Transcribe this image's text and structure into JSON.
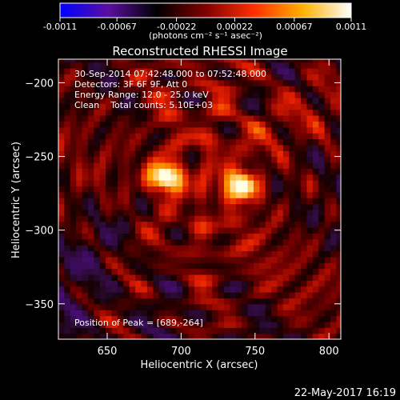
{
  "colorbar": {
    "ticks": [
      "-0.0011",
      "-0.00067",
      "-0.00022",
      "0.00022",
      "0.00067",
      "0.0011"
    ],
    "tick_values": [
      -0.0011,
      -0.00067,
      -0.00022,
      0.00022,
      0.00067,
      0.0011
    ],
    "range": [
      -0.0011,
      0.0011
    ],
    "unit_label": "(photons cm⁻² s⁻¹ asec⁻²)",
    "colors": [
      "#0000ff",
      "#5a0fa0",
      "#000000",
      "#800000",
      "#ff3000",
      "#ffb000",
      "#ffffff"
    ]
  },
  "chart_data": {
    "type": "heatmap",
    "title": "Reconstructed RHESSI Image",
    "xlabel": "Heliocentric X (arcsec)",
    "ylabel": "Heliocentric Y (arcsec)",
    "xlim": [
      617,
      808
    ],
    "ylim": [
      -374,
      -184
    ],
    "x_ticks": [
      650,
      700,
      750,
      800
    ],
    "y_ticks": [
      -200,
      -250,
      -300,
      -350
    ],
    "x_tick_labels": [
      "650",
      "700",
      "750",
      "800"
    ],
    "y_tick_labels": [
      "−200",
      "−250",
      "−300",
      "−350"
    ],
    "sources": [
      {
        "x": 689,
        "y": -264,
        "peak": 0.0011
      },
      {
        "x": 741,
        "y": -270,
        "peak": 0.0009
      }
    ],
    "annotations": {
      "time_range": "30-Sep-2014 07:42:48.000 to 07:52:48.000",
      "detectors": "Detectors: 3F 6F 9F, Att 0",
      "energy": "Energy Range: 12.0 - 25.0 keV",
      "clean": "Clean    Total counts: 5.10E+03",
      "peak": "Position of Peak = [689,-264]"
    }
  },
  "footer": {
    "date": "22-May-2017 16:19"
  }
}
